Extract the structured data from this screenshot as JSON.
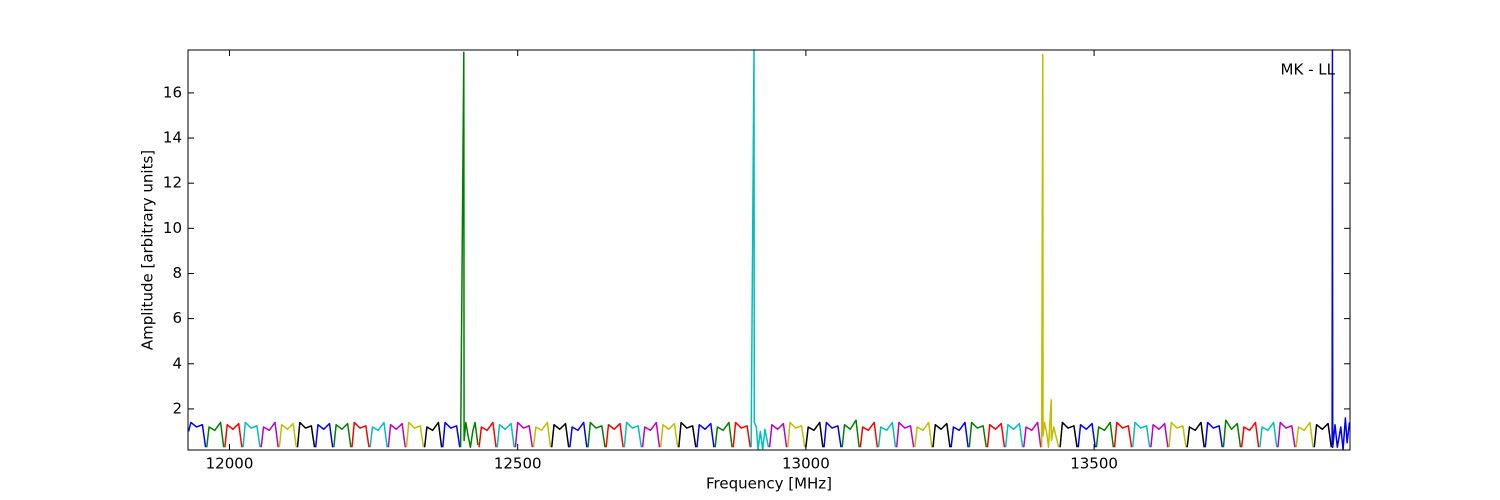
{
  "chart_data": {
    "type": "line",
    "annotation": "MK - LL",
    "x_label": "Frequency [MHz]",
    "y_label": "Amplitude [arbitrary units]",
    "xlim": [
      11928,
      13944
    ],
    "ylim": [
      0.18,
      17.9
    ],
    "xticks": [
      12000,
      12500,
      13000,
      13500
    ],
    "yticks": [
      2,
      4,
      6,
      8,
      10,
      12,
      14,
      16
    ],
    "series": [
      {
        "color": "#0000ff",
        "x": [
          11929,
          11933,
          11943,
          11953,
          11958.5,
          null,
          12149.5,
          12153.5,
          12163.5,
          12173.5,
          12179,
          null,
          12370,
          12374,
          12384,
          12394,
          12399.5,
          null,
          12590.5,
          12594.5,
          12604.5,
          12614.5,
          12620,
          null,
          12811,
          12815,
          12825,
          12835,
          12840.5,
          null,
          13031.5,
          13035.5,
          13045.5,
          13055.5,
          13061,
          null,
          13252,
          13256,
          13266,
          13276,
          13281.5,
          null,
          13472.5,
          13476.5,
          13486.5,
          13496.5,
          13502,
          null,
          13693,
          13697,
          13707,
          13717,
          13722.5,
          null,
          13913,
          13913.5,
          13914,
          13918,
          13922,
          13928,
          13932,
          13936,
          13939,
          13943
        ],
        "values": [
          1.0,
          1.4,
          1.2,
          1.3,
          0.3,
          null,
          0.3,
          1.3,
          1.1,
          1.35,
          0.3,
          null,
          0.3,
          1.4,
          1.15,
          1.25,
          0.3,
          null,
          0.3,
          1.2,
          1.05,
          1.4,
          0.3,
          null,
          0.3,
          1.3,
          1.1,
          1.35,
          0.3,
          null,
          0.3,
          1.4,
          1.15,
          1.25,
          0.3,
          null,
          0.3,
          1.2,
          1.05,
          1.4,
          0.3,
          null,
          0.3,
          1.3,
          1.1,
          1.35,
          0.3,
          null,
          0.3,
          1.4,
          1.15,
          1.25,
          0.3,
          null,
          0.3,
          17.9,
          0.3,
          1.3,
          0.3,
          1.2,
          0.2,
          1.6,
          0.5,
          1.4
        ]
      },
      {
        "color": "#008000",
        "x": [
          11960.5,
          11964.5,
          11974.5,
          11984.5,
          11990,
          null,
          12181,
          12185,
          12195,
          12205,
          12210.5,
          null,
          12401,
          12406.5,
          12407,
          12410,
          12414,
          12418,
          12422,
          12426,
          12431,
          null,
          12622,
          12626,
          12636,
          12646,
          12651.5,
          null,
          12842.5,
          12846.5,
          12856.5,
          12866.5,
          12872,
          null,
          13063,
          13067,
          13077,
          13087,
          13092.5,
          null,
          13283.5,
          13287.5,
          13297.5,
          13307.5,
          13313,
          null,
          13504,
          13508,
          13518,
          13528,
          13533.5,
          null,
          13724.5,
          13728.5,
          13738.5,
          13748.5,
          13754
        ],
        "values": [
          0.3,
          1.2,
          1.05,
          1.4,
          0.3,
          null,
          0.3,
          1.3,
          1.1,
          1.35,
          0.3,
          null,
          0.3,
          17.8,
          0.6,
          1.4,
          0.8,
          0.3,
          1.0,
          1.4,
          0.4,
          null,
          0.3,
          1.4,
          1.15,
          1.25,
          0.3,
          null,
          0.3,
          1.2,
          1.05,
          1.4,
          0.3,
          null,
          0.3,
          1.3,
          1.1,
          1.5,
          0.3,
          null,
          0.3,
          1.4,
          1.15,
          1.25,
          0.3,
          null,
          0.3,
          1.2,
          1.05,
          1.4,
          0.3,
          null,
          0.3,
          1.5,
          1.1,
          1.35,
          0.3
        ]
      },
      {
        "color": "#ff0000",
        "x": [
          11992,
          11996,
          12006,
          12016,
          12021.5,
          null,
          12212.5,
          12216.5,
          12226.5,
          12236.5,
          12242,
          null,
          12433,
          12437,
          12447,
          12457,
          12462.5,
          null,
          12653.5,
          12657.5,
          12667.5,
          12677.5,
          12683,
          null,
          12874,
          12878,
          12888,
          12898,
          12903.5,
          null,
          13094.5,
          13098.5,
          13108.5,
          13118.5,
          13124,
          null,
          13315,
          13319,
          13329,
          13339,
          13344.5,
          null,
          13535.5,
          13539.5,
          13549.5,
          13559.5,
          13565,
          null,
          13756,
          13760,
          13770,
          13780,
          13785.5
        ],
        "values": [
          0.3,
          1.3,
          1.1,
          1.35,
          0.3,
          null,
          0.3,
          1.4,
          1.15,
          1.25,
          0.3,
          null,
          0.3,
          1.2,
          1.05,
          1.4,
          0.3,
          null,
          0.3,
          1.3,
          1.1,
          1.35,
          0.3,
          null,
          0.3,
          1.4,
          1.15,
          1.25,
          0.3,
          null,
          0.3,
          1.2,
          1.05,
          1.4,
          0.3,
          null,
          0.3,
          1.3,
          1.1,
          1.35,
          0.3,
          null,
          0.3,
          1.4,
          1.15,
          1.25,
          0.3,
          null,
          0.3,
          1.2,
          1.05,
          1.4,
          0.3
        ]
      },
      {
        "color": "#00bfbf",
        "x": [
          12023.5,
          12027.5,
          12037.5,
          12047.5,
          12053,
          null,
          12244,
          12248,
          12258,
          12268,
          12273.5,
          null,
          12464.5,
          12468.5,
          12478.5,
          12488.5,
          12494,
          null,
          12685,
          12689,
          12699,
          12709,
          12714.5,
          null,
          12905,
          12910,
          12910.5,
          12914,
          12917,
          12921,
          12925,
          12929,
          12935,
          null,
          13126,
          13130,
          13140,
          13150,
          13155.5,
          null,
          13346.5,
          13350.5,
          13360.5,
          13370.5,
          13376,
          null,
          13567,
          13571,
          13581,
          13591,
          13596.5,
          null,
          13787.5,
          13791.5,
          13801.5,
          13811.5,
          13817
        ],
        "values": [
          0.3,
          1.4,
          1.15,
          1.25,
          0.3,
          null,
          0.3,
          1.2,
          1.05,
          1.4,
          0.3,
          null,
          0.3,
          1.3,
          1.1,
          1.35,
          0.3,
          null,
          0.3,
          1.4,
          1.15,
          1.25,
          0.3,
          null,
          0.3,
          17.9,
          1.4,
          1.2,
          0.2,
          1.0,
          0.2,
          1.1,
          0.3,
          null,
          0.3,
          1.2,
          1.05,
          1.4,
          0.3,
          null,
          0.3,
          1.3,
          1.1,
          1.35,
          0.3,
          null,
          0.3,
          1.4,
          1.15,
          1.25,
          0.3,
          null,
          0.3,
          1.2,
          1.05,
          1.4,
          0.3
        ]
      },
      {
        "color": "#bf00bf",
        "x": [
          12055,
          12059,
          12069,
          12079,
          12084.5,
          null,
          12275.5,
          12279.5,
          12289.5,
          12299.5,
          12305,
          null,
          12496,
          12500,
          12510,
          12520,
          12525.5,
          null,
          12716.5,
          12720.5,
          12730.5,
          12740.5,
          12746,
          null,
          12937,
          12941,
          12951,
          12961,
          12966.5,
          null,
          13157.5,
          13161.5,
          13171.5,
          13181.5,
          13187,
          null,
          13378,
          13382,
          13392,
          13402,
          13407.5,
          null,
          13598.5,
          13602.5,
          13612.5,
          13622.5,
          13628,
          null,
          13819,
          13823,
          13833,
          13843,
          13848.5
        ],
        "values": [
          0.3,
          1.2,
          1.05,
          1.4,
          0.3,
          null,
          0.3,
          1.3,
          1.1,
          1.35,
          0.3,
          null,
          0.3,
          1.4,
          1.15,
          1.25,
          0.3,
          null,
          0.3,
          1.2,
          1.05,
          1.4,
          0.3,
          null,
          0.3,
          1.3,
          1.1,
          1.35,
          0.3,
          null,
          0.3,
          1.4,
          1.15,
          1.25,
          0.3,
          null,
          0.3,
          1.2,
          1.05,
          1.4,
          0.3,
          null,
          0.3,
          1.3,
          1.1,
          1.35,
          0.3,
          null,
          0.3,
          1.4,
          1.15,
          1.25,
          0.3
        ]
      },
      {
        "color": "#bfbf00",
        "x": [
          12086.5,
          12090.5,
          12100.5,
          12110.5,
          12116,
          null,
          12307,
          12311,
          12321,
          12331,
          12336.5,
          null,
          12527.5,
          12531.5,
          12541.5,
          12551.5,
          12557,
          null,
          12748,
          12752,
          12762,
          12772,
          12777.5,
          null,
          12968.5,
          12972.5,
          12982.5,
          12992.5,
          12998,
          null,
          13189,
          13193,
          13203,
          13213,
          13218.5,
          null,
          13409,
          13411,
          13411.5,
          13414,
          13418,
          13421,
          13425.5,
          13426,
          13430,
          13438.5,
          null,
          13630,
          13634,
          13644,
          13654,
          13659.5,
          null,
          13850.5,
          13854.5,
          13864.5,
          13874.5,
          13880
        ],
        "values": [
          0.3,
          1.3,
          1.1,
          1.35,
          0.3,
          null,
          0.3,
          1.4,
          1.15,
          1.25,
          0.3,
          null,
          0.3,
          1.2,
          1.05,
          1.4,
          0.3,
          null,
          0.3,
          1.3,
          1.1,
          1.35,
          0.3,
          null,
          0.3,
          1.4,
          1.15,
          1.25,
          0.3,
          null,
          0.3,
          1.2,
          1.05,
          1.4,
          0.3,
          null,
          0.3,
          17.7,
          0.8,
          1.4,
          0.9,
          0.3,
          2.4,
          0.6,
          1.2,
          0.3,
          null,
          0.3,
          1.4,
          1.15,
          1.25,
          0.3,
          null,
          0.3,
          1.2,
          1.05,
          1.4,
          0.3
        ]
      },
      {
        "color": "#000000",
        "x": [
          12118,
          12122,
          12132,
          12142,
          12147.5,
          null,
          12338.5,
          12342.5,
          12352.5,
          12362.5,
          12368,
          null,
          12559,
          12563,
          12573,
          12583,
          12588.5,
          null,
          12779.5,
          12783.5,
          12793.5,
          12803.5,
          12809,
          null,
          13000,
          13004,
          13014,
          13024,
          13029.5,
          null,
          13220.5,
          13224.5,
          13234.5,
          13244.5,
          13250,
          null,
          13441,
          13445,
          13455,
          13465,
          13470.5,
          null,
          13661.5,
          13665.5,
          13675.5,
          13685.5,
          13691,
          null,
          13882,
          13886,
          13896,
          13906,
          13911.5
        ],
        "values": [
          0.3,
          1.4,
          1.15,
          1.25,
          0.3,
          null,
          0.3,
          1.2,
          1.05,
          1.4,
          0.3,
          null,
          0.3,
          1.3,
          1.1,
          1.35,
          0.3,
          null,
          0.3,
          1.4,
          1.15,
          1.25,
          0.3,
          null,
          0.3,
          1.2,
          1.05,
          1.4,
          0.3,
          null,
          0.3,
          1.3,
          1.1,
          1.35,
          0.3,
          null,
          0.3,
          1.4,
          1.15,
          1.25,
          0.3,
          null,
          0.3,
          1.2,
          1.05,
          1.4,
          0.3,
          null,
          0.3,
          1.3,
          1.1,
          1.35,
          0.3
        ]
      }
    ]
  }
}
